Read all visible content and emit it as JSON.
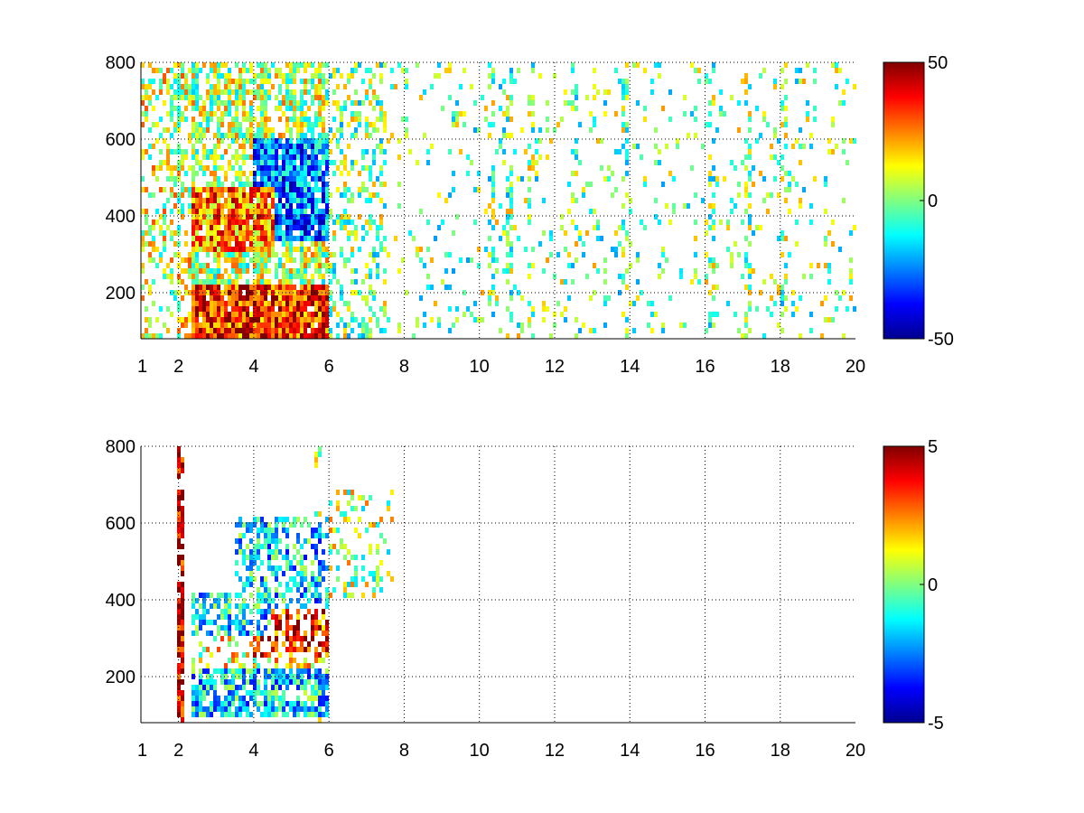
{
  "chart_data": [
    {
      "type": "heatmap",
      "title": "",
      "xlabel": "",
      "ylabel": "",
      "xlim": [
        1,
        20
      ],
      "ylim": [
        80,
        800
      ],
      "xticks": [
        1,
        2,
        4,
        6,
        8,
        10,
        12,
        14,
        16,
        18,
        20
      ],
      "xtick_labels": [
        "1",
        "2",
        "4",
        "6",
        "8",
        "10",
        "12",
        "14",
        "16",
        "18",
        "20"
      ],
      "yticks": [
        200,
        400,
        600,
        800
      ],
      "ytick_labels": [
        "200",
        "400",
        "600",
        "800"
      ],
      "grid": true,
      "colormap": "jet",
      "clim": [
        -50,
        50
      ],
      "colorbar_ticks": [
        -50,
        0,
        50
      ],
      "colorbar_labels": [
        "-50",
        "0",
        "50"
      ],
      "density_regions": [
        {
          "x": [
            2.3,
            6.0
          ],
          "y": [
            80,
            220
          ],
          "level": 35,
          "density": 0.95
        },
        {
          "x": [
            2.3,
            4.6
          ],
          "y": [
            300,
            480
          ],
          "level": 25,
          "density": 0.9
        },
        {
          "x": [
            4.0,
            6.0
          ],
          "y": [
            330,
            600
          ],
          "level": -25,
          "density": 0.85
        },
        {
          "x": [
            4.2,
            5.8
          ],
          "y": [
            420,
            560
          ],
          "level": -40,
          "density": 0.5
        },
        {
          "x": [
            1.0,
            2.3
          ],
          "y": [
            80,
            800
          ],
          "level": 8,
          "density": 0.35
        },
        {
          "x": [
            2.3,
            6.0
          ],
          "y": [
            220,
            800
          ],
          "level": 5,
          "density": 0.6
        },
        {
          "x": [
            6.0,
            7.5
          ],
          "y": [
            80,
            800
          ],
          "level": 0,
          "density": 0.35
        },
        {
          "x": [
            7.5,
            20.0
          ],
          "y": [
            80,
            800
          ],
          "level": 0,
          "density": 0.1
        }
      ],
      "vertical_streaks": [
        2.05,
        2.45,
        3.0,
        3.6,
        4.3,
        4.9,
        5.3,
        10.3,
        10.8,
        11.4,
        12.5,
        13.9,
        16.2,
        17.1,
        18.1
      ]
    },
    {
      "type": "heatmap",
      "title": "",
      "xlabel": "",
      "ylabel": "",
      "xlim": [
        1,
        20
      ],
      "ylim": [
        80,
        800
      ],
      "xticks": [
        1,
        2,
        4,
        6,
        8,
        10,
        12,
        14,
        16,
        18,
        20
      ],
      "xtick_labels": [
        "1",
        "2",
        "4",
        "6",
        "8",
        "10",
        "12",
        "14",
        "16",
        "18",
        "20"
      ],
      "yticks": [
        200,
        400,
        600,
        800
      ],
      "ytick_labels": [
        "200",
        "400",
        "600",
        "800"
      ],
      "grid": true,
      "colormap": "jet",
      "clim": [
        -5,
        5
      ],
      "colorbar_ticks": [
        -5,
        0,
        5
      ],
      "colorbar_labels": [
        "-5",
        "0",
        "5"
      ],
      "density_regions": [
        {
          "x": [
            2.3,
            6.0
          ],
          "y": [
            90,
            220
          ],
          "level": -1.5,
          "density": 0.7
        },
        {
          "x": [
            2.3,
            4.5
          ],
          "y": [
            310,
            420
          ],
          "level": -1.5,
          "density": 0.6
        },
        {
          "x": [
            4.0,
            6.0
          ],
          "y": [
            250,
            380
          ],
          "level": 3.5,
          "density": 0.5
        },
        {
          "x": [
            3.5,
            6.0
          ],
          "y": [
            380,
            620
          ],
          "level": -1.5,
          "density": 0.45
        },
        {
          "x": [
            6.0,
            7.7
          ],
          "y": [
            400,
            680
          ],
          "level": 0.5,
          "density": 0.25
        },
        {
          "x": [
            2.3,
            6.0
          ],
          "y": [
            220,
            310
          ],
          "level": 1.0,
          "density": 0.35
        },
        {
          "x": [
            2.0,
            2.15
          ],
          "y": [
            80,
            800
          ],
          "level": 4.5,
          "density": 0.6
        }
      ],
      "vertical_streaks": [
        2.05,
        4.6,
        5.7
      ]
    }
  ]
}
